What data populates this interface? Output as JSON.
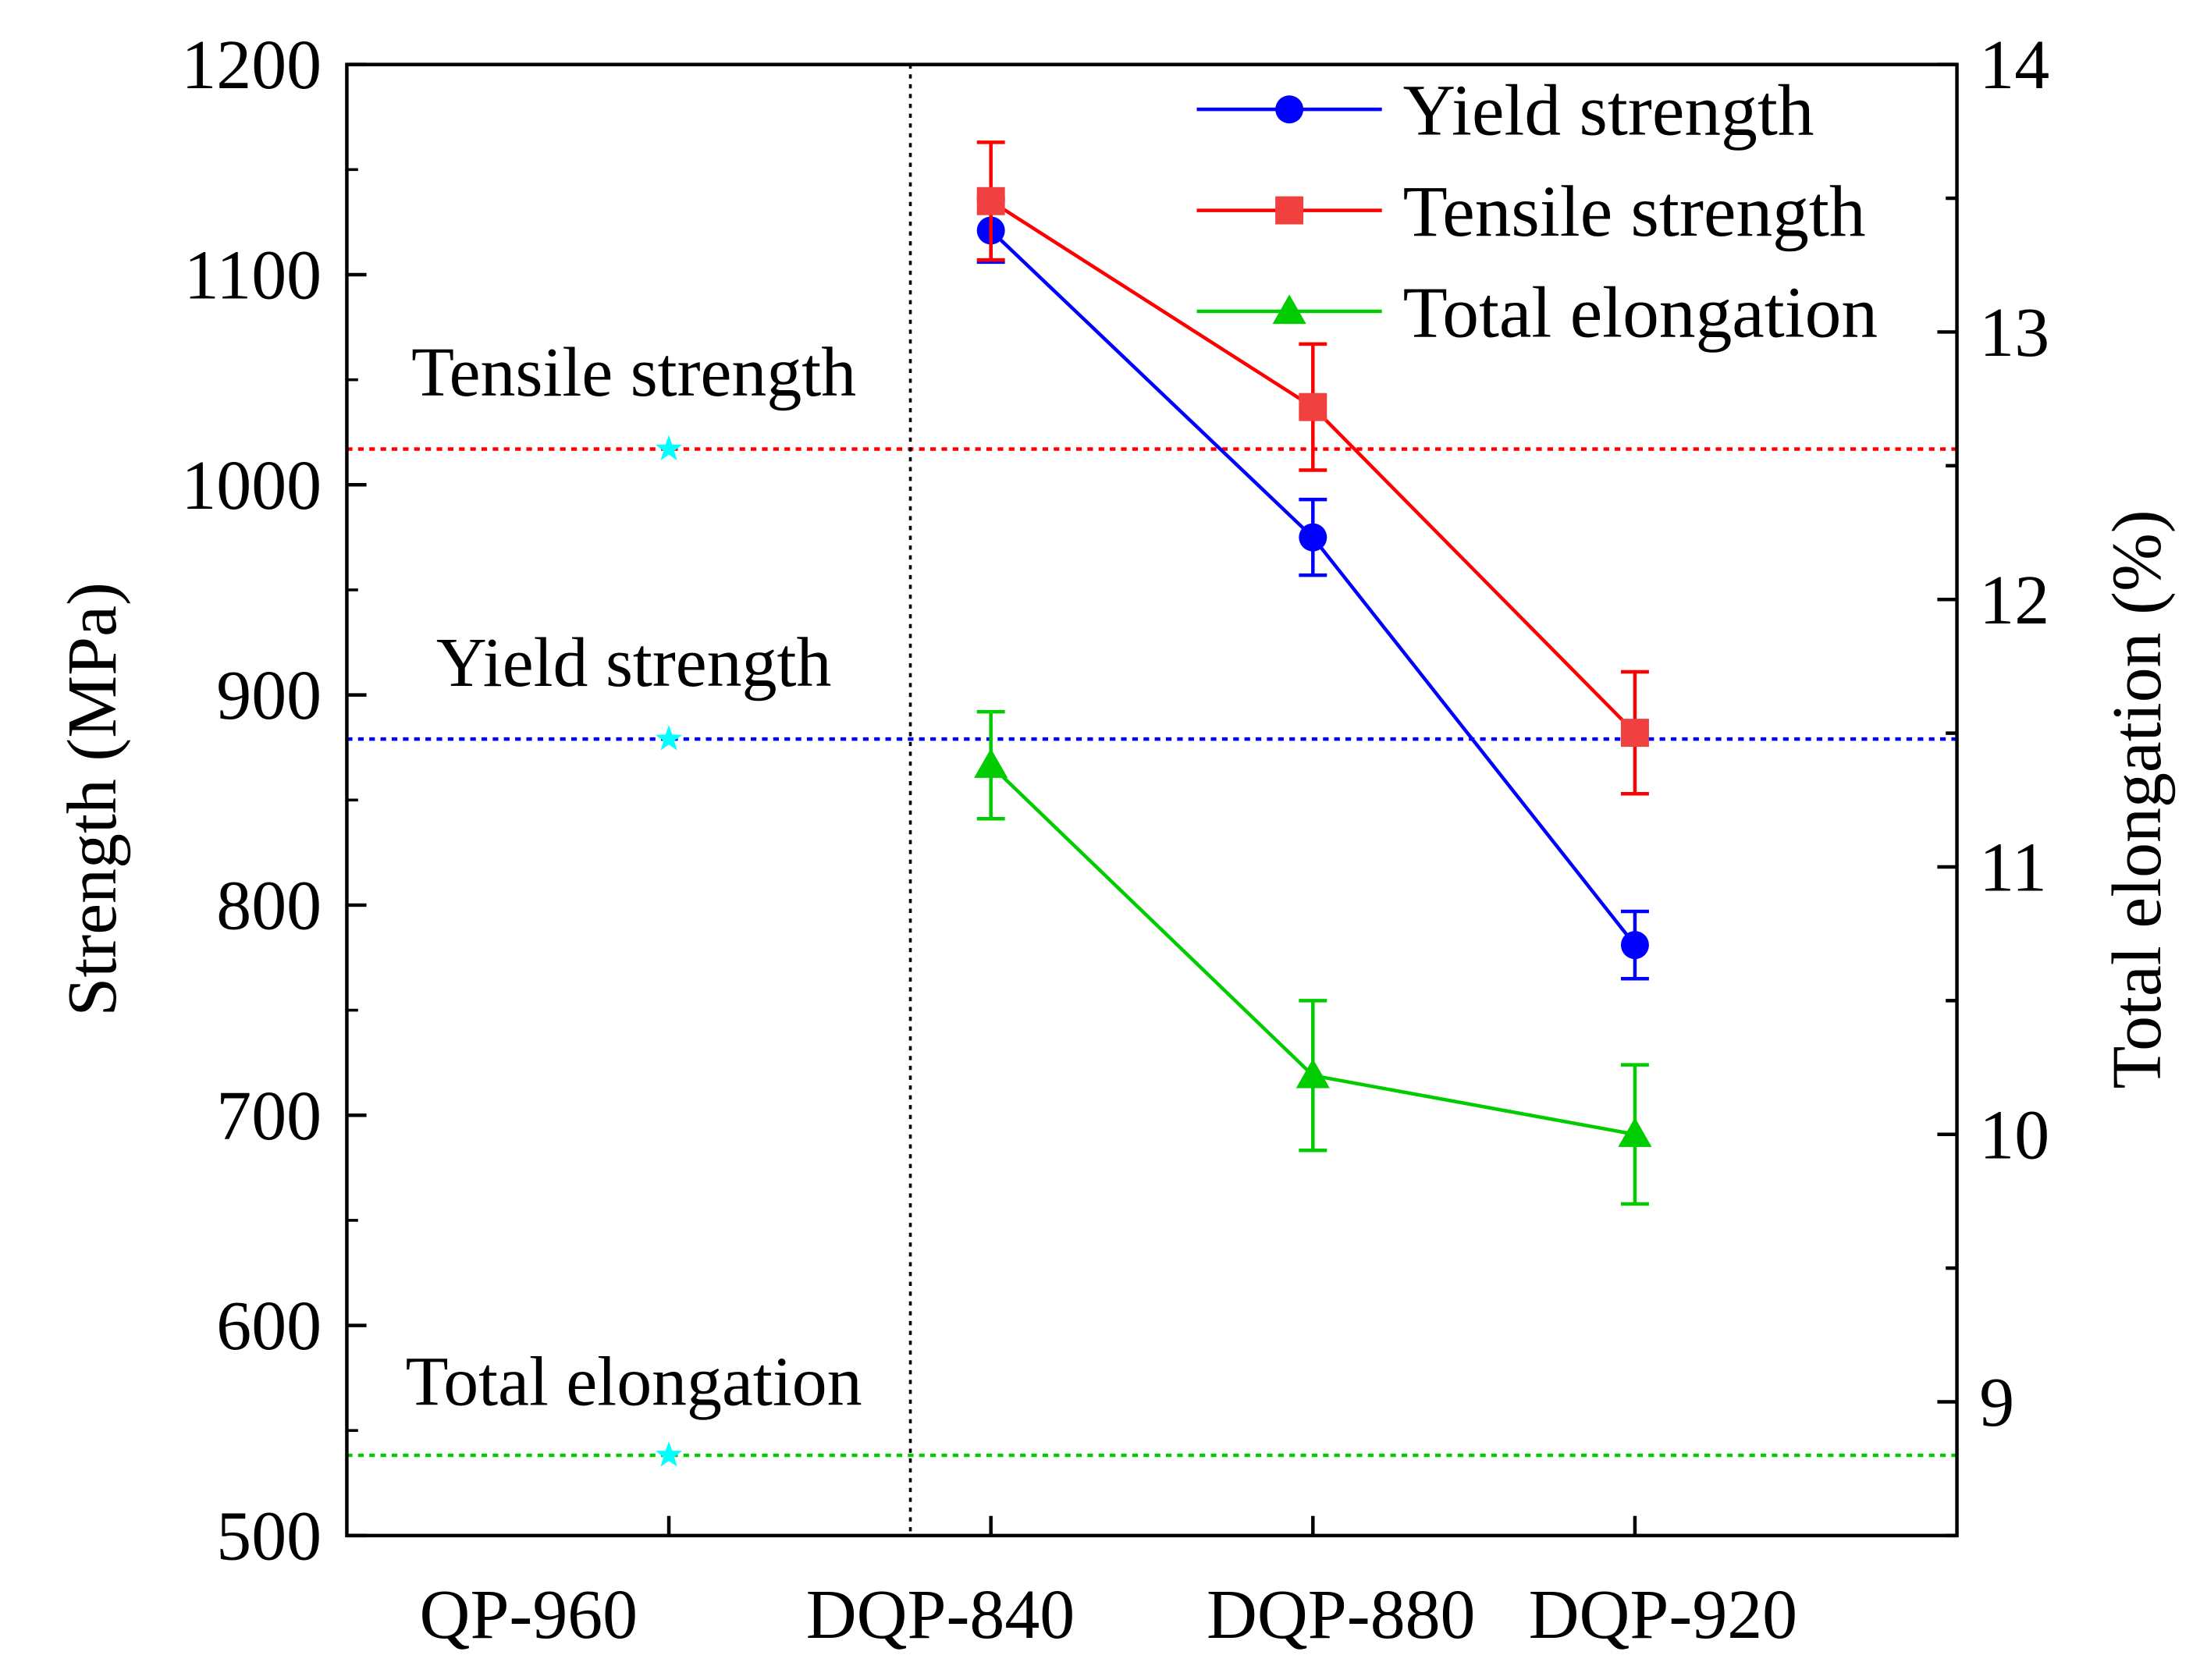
{
  "chart_data": {
    "type": "line",
    "categories": [
      "QP-960",
      "DQP-840",
      "DQP-880",
      "DQP-920"
    ],
    "xlim": [
      -1,
      4
    ],
    "ylabel": "Strength (MPa)",
    "ylim": [
      500,
      1200
    ],
    "yticks": [
      500,
      600,
      700,
      800,
      900,
      1000,
      1100,
      1200
    ],
    "y2label": "Total elongation (%)",
    "y2lim": [
      8.5,
      14
    ],
    "y2ticks": [
      9,
      10,
      11,
      12,
      13,
      14
    ],
    "legend_position": "top-right",
    "divider_at": 0.75,
    "series": [
      {
        "name": "Yield strength",
        "axis": "left",
        "color": "#0000ff",
        "marker": "circle",
        "x": [
          1,
          2,
          3
        ],
        "values": [
          1121,
          975,
          781
        ],
        "errors": [
          15,
          18,
          16
        ]
      },
      {
        "name": "Tensile strength",
        "axis": "left",
        "color": "#ff0000",
        "marker": "square",
        "x": [
          1,
          2,
          3
        ],
        "values": [
          1135,
          1037,
          882
        ],
        "errors": [
          28,
          30,
          29
        ]
      },
      {
        "name": "Total elongation",
        "axis": "right",
        "color": "#00cc00",
        "marker": "triangle",
        "x": [
          1,
          2,
          3
        ],
        "values": [
          11.38,
          10.22,
          10.0
        ],
        "errors": [
          0.2,
          0.28,
          0.26
        ]
      }
    ],
    "reference": [
      {
        "label": "Tensile strength",
        "axis": "left",
        "value": 1017,
        "color": "#ff0000"
      },
      {
        "label": "Yield strength",
        "axis": "left",
        "value": 879,
        "color": "#0000ff"
      },
      {
        "label": "Total elongation",
        "axis": "right",
        "value": 8.8,
        "color": "#00cc00"
      }
    ],
    "reference_marker_color": "#00ffff"
  }
}
